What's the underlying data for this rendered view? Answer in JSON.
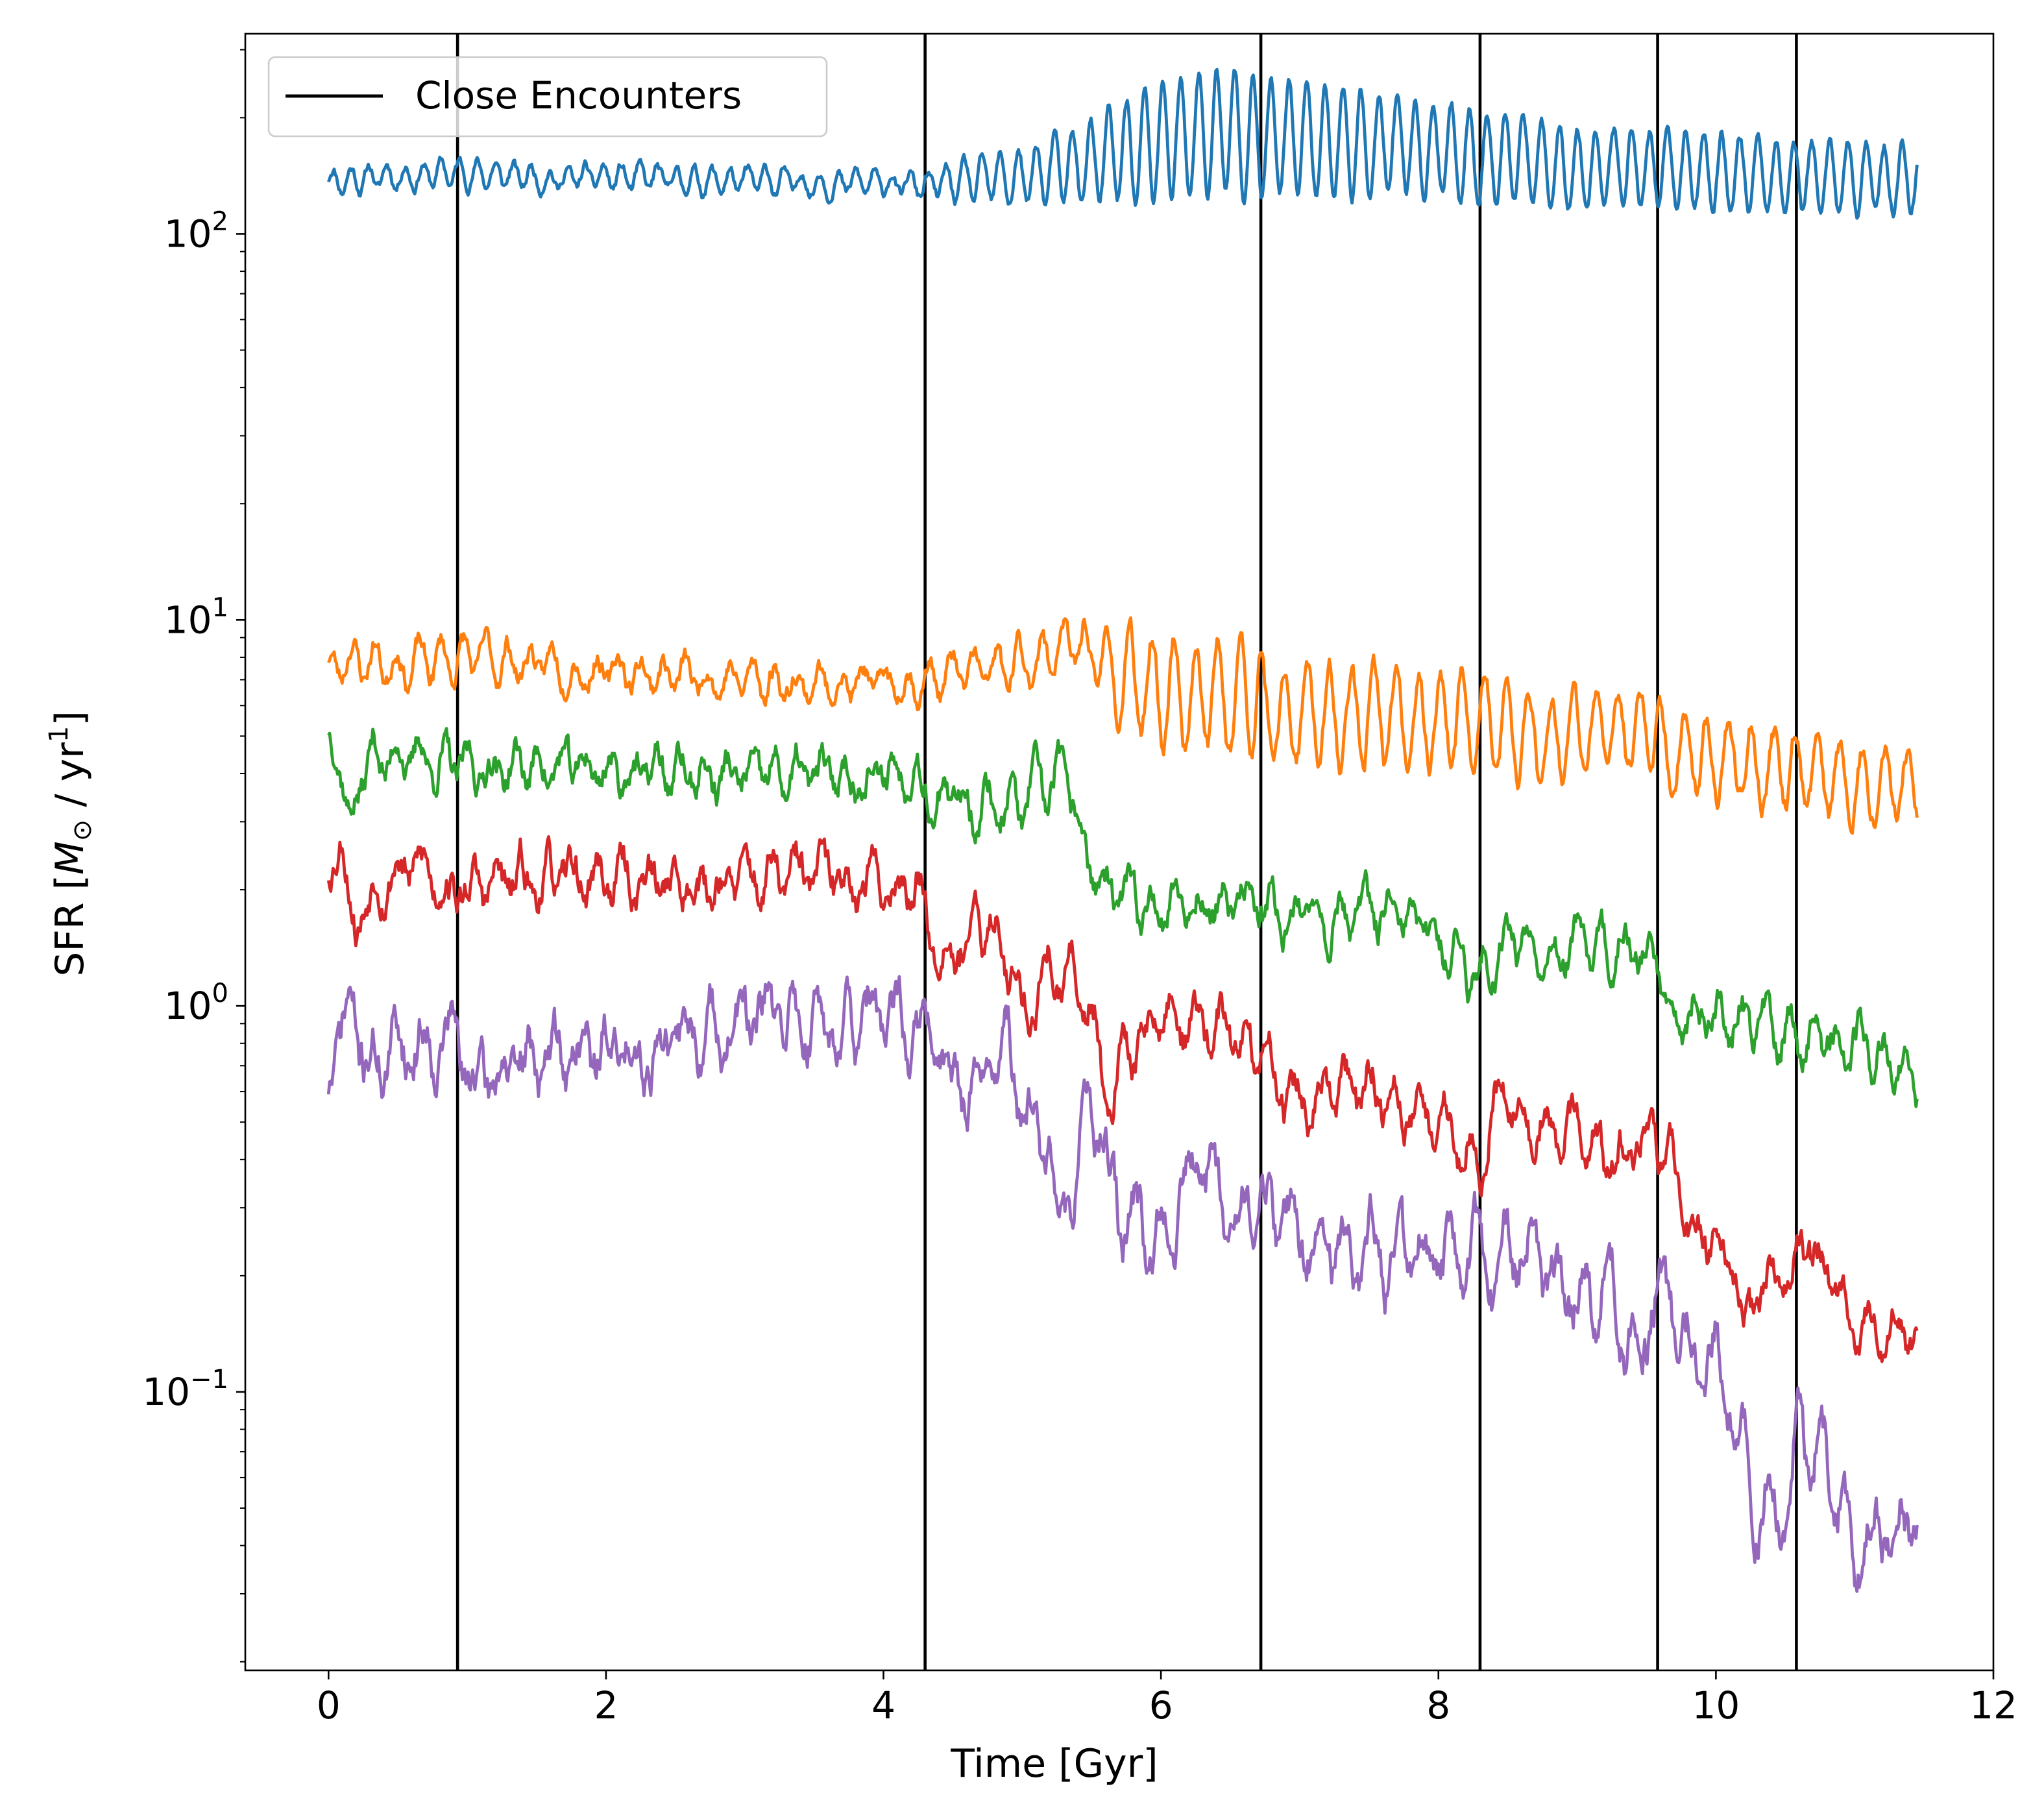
{
  "chart_data": {
    "type": "line",
    "xlabel": "Time [Gyr]",
    "ylabel": "SFR [M⊙ / yr¹]",
    "ylabel_parts": {
      "pre": "SFR [",
      "sym": "M",
      "sub": "⊙",
      "mid": " / yr",
      "sup": "1",
      "post": "]"
    },
    "xlim": [
      -0.6,
      12
    ],
    "ylim": [
      0.019,
      330
    ],
    "yscale": "log",
    "x_ticks": [
      0,
      2,
      4,
      6,
      8,
      10,
      12
    ],
    "x_tick_labels": [
      "0",
      "2",
      "4",
      "6",
      "8",
      "10",
      "12"
    ],
    "y_major_ticks": [
      {
        "value": 0.1,
        "base": "10",
        "exp": "−1"
      },
      {
        "value": 1,
        "base": "10",
        "exp": "0"
      },
      {
        "value": 10,
        "base": "10",
        "exp": "1"
      },
      {
        "value": 100,
        "base": "10",
        "exp": "2"
      }
    ],
    "grid": false,
    "legend": {
      "placement": "top-left",
      "entries": [
        {
          "label": "Close Encounters",
          "color": "#000000"
        }
      ]
    },
    "close_encounters": [
      0.93,
      4.3,
      6.72,
      8.3,
      9.58,
      10.58
    ],
    "series": [
      {
        "color": "#1f77b4",
        "x": [
          0,
          0.5,
          1.0,
          1.5,
          2.0,
          2.5,
          3.0,
          3.5,
          4.0,
          4.3,
          4.6,
          5.0,
          5.4,
          5.8,
          6.2,
          6.5,
          6.8,
          7.0,
          7.5,
          8.0,
          8.3,
          8.6,
          9.0,
          9.5,
          10.0,
          10.5,
          11.0,
          11.45
        ],
        "y": [
          138,
          142,
          144,
          140,
          140,
          138,
          137,
          136,
          135,
          133,
          136,
          140,
          150,
          165,
          180,
          185,
          175,
          180,
          170,
          165,
          160,
          155,
          150,
          148,
          145,
          142,
          138,
          140
        ],
        "amp": [
          0.03,
          0.03,
          0.03,
          0.03,
          0.03,
          0.03,
          0.03,
          0.03,
          0.03,
          0.03,
          0.05,
          0.07,
          0.1,
          0.14,
          0.16,
          0.16,
          0.15,
          0.15,
          0.13,
          0.12,
          0.12,
          0.11,
          0.1,
          0.1,
          0.1,
          0.09,
          0.09,
          0.09
        ],
        "period": 0.13,
        "noise": 0.02,
        "seed": 11
      },
      {
        "color": "#ff7f0e",
        "x": [
          0,
          0.1,
          0.5,
          1.0,
          1.5,
          2.0,
          2.5,
          3.0,
          3.5,
          4.0,
          4.3,
          4.6,
          5.0,
          5.3,
          5.5,
          5.7,
          6.0,
          6.5,
          6.72,
          6.75,
          7.0,
          7.5,
          8.0,
          8.3,
          8.5,
          9.0,
          9.58,
          9.62,
          10.0,
          10.58,
          11.0,
          11.45
        ],
        "y": [
          7.2,
          8.0,
          7.7,
          8.0,
          7.7,
          7.4,
          7.2,
          7.0,
          6.9,
          6.8,
          7.0,
          7.3,
          7.5,
          8.8,
          8.2,
          7.0,
          6.6,
          6.3,
          6.3,
          5.3,
          5.6,
          5.5,
          5.6,
          5.5,
          5.0,
          5.0,
          5.4,
          4.4,
          4.4,
          4.0,
          3.8,
          3.9
        ],
        "amp": [
          0.05,
          0.05,
          0.05,
          0.05,
          0.04,
          0.04,
          0.04,
          0.04,
          0.04,
          0.04,
          0.04,
          0.05,
          0.06,
          0.06,
          0.08,
          0.12,
          0.14,
          0.14,
          0.14,
          0.12,
          0.12,
          0.12,
          0.12,
          0.12,
          0.12,
          0.11,
          0.11,
          0.11,
          0.1,
          0.1,
          0.09,
          0.09
        ],
        "period": 0.16,
        "noise": 0.04,
        "seed": 23
      },
      {
        "color": "#2ca02c",
        "x": [
          0,
          0.05,
          0.15,
          0.3,
          0.6,
          0.93,
          1.5,
          2.0,
          2.5,
          3.0,
          3.5,
          4.0,
          4.3,
          4.35,
          4.8,
          5.0,
          5.3,
          5.4,
          5.6,
          5.8,
          6.0,
          6.5,
          6.72,
          6.75,
          7.0,
          7.5,
          8.0,
          8.3,
          8.5,
          9.0,
          9.58,
          9.65,
          10.0,
          10.58,
          11.0,
          11.45
        ],
        "y": [
          5.2,
          4.8,
          3.2,
          4.4,
          4.5,
          4.1,
          4.2,
          4.1,
          4.0,
          3.9,
          3.9,
          4.0,
          4.2,
          3.4,
          3.4,
          3.3,
          3.9,
          2.9,
          1.9,
          1.8,
          1.9,
          1.8,
          1.85,
          1.65,
          1.75,
          1.7,
          1.5,
          1.2,
          1.55,
          1.4,
          1.35,
          1.0,
          0.95,
          0.85,
          0.8,
          0.68
        ],
        "amp": [
          0,
          0,
          0,
          0.05,
          0.05,
          0.04,
          0.04,
          0.04,
          0.04,
          0.04,
          0.04,
          0.04,
          0.04,
          0.04,
          0.05,
          0.06,
          0.06,
          0.05,
          0.05,
          0.05,
          0.05,
          0.05,
          0.05,
          0.05,
          0.05,
          0.05,
          0.05,
          0.05,
          0.05,
          0.05,
          0.05,
          0.05,
          0.05,
          0.05,
          0.05,
          0.05
        ],
        "period": 0.17,
        "noise": 0.06,
        "seed": 37
      },
      {
        "color": "#d62728",
        "x": [
          0,
          0.1,
          0.2,
          0.35,
          0.6,
          0.93,
          1.5,
          2.0,
          2.5,
          3.0,
          3.5,
          4.0,
          4.3,
          4.35,
          4.8,
          4.95,
          5.0,
          5.2,
          5.5,
          5.6,
          5.8,
          6.0,
          6.5,
          6.72,
          7.0,
          7.5,
          8.0,
          8.3,
          8.35,
          8.5,
          8.7,
          9.0,
          9.3,
          9.58,
          9.8,
          10.0,
          10.2,
          10.58,
          10.8,
          11.0,
          11.2,
          11.45
        ],
        "y": [
          2.2,
          2.8,
          1.6,
          2.2,
          2.3,
          2.0,
          2.1,
          2.15,
          2.1,
          2.1,
          2.15,
          2.1,
          2.0,
          1.5,
          1.55,
          1.3,
          0.95,
          1.25,
          1.05,
          0.6,
          0.78,
          0.95,
          0.85,
          0.72,
          0.55,
          0.6,
          0.5,
          0.42,
          0.5,
          0.65,
          0.45,
          0.5,
          0.38,
          0.46,
          0.28,
          0.28,
          0.15,
          0.23,
          0.22,
          0.12,
          0.16,
          0.13
        ],
        "amp": [
          0,
          0,
          0,
          0.04,
          0.04,
          0.04,
          0.04,
          0.04,
          0.04,
          0.04,
          0.04,
          0.04,
          0.04,
          0.04,
          0.05,
          0.05,
          0.05,
          0.05,
          0.05,
          0.05,
          0.05,
          0.05,
          0.05,
          0.05,
          0.05,
          0.05,
          0.05,
          0.05,
          0.05,
          0.05,
          0.05,
          0.05,
          0.05,
          0.05,
          0.05,
          0.05,
          0.05,
          0.05,
          0.05,
          0.05,
          0.05,
          0.05
        ],
        "period": 0.18,
        "noise": 0.07,
        "seed": 53
      },
      {
        "color": "#9467bd",
        "x": [
          0,
          0.05,
          0.15,
          0.25,
          0.5,
          0.93,
          1.0,
          1.5,
          2.0,
          2.5,
          3.0,
          3.5,
          4.0,
          4.3,
          4.4,
          4.6,
          4.9,
          5.0,
          5.2,
          5.25,
          5.35,
          5.5,
          5.7,
          6.0,
          6.2,
          6.5,
          6.72,
          7.0,
          7.5,
          7.8,
          8.0,
          8.3,
          8.35,
          8.6,
          8.9,
          9.2,
          9.4,
          9.6,
          9.8,
          10.0,
          10.3,
          10.5,
          10.6,
          10.8,
          11.0,
          11.2,
          11.45
        ],
        "y": [
          0.62,
          0.7,
          1.1,
          0.7,
          0.8,
          0.85,
          0.62,
          0.72,
          0.78,
          0.8,
          0.9,
          0.92,
          0.88,
          0.85,
          0.72,
          0.62,
          0.8,
          0.55,
          0.45,
          0.22,
          0.32,
          0.55,
          0.28,
          0.26,
          0.4,
          0.3,
          0.3,
          0.25,
          0.23,
          0.2,
          0.22,
          0.22,
          0.18,
          0.25,
          0.16,
          0.2,
          0.13,
          0.19,
          0.14,
          0.12,
          0.055,
          0.05,
          0.085,
          0.07,
          0.04,
          0.045,
          0.05
        ],
        "amp": [
          0,
          0,
          0,
          0.05,
          0.05,
          0.05,
          0.05,
          0.05,
          0.05,
          0.05,
          0.05,
          0.05,
          0.05,
          0.05,
          0.06,
          0.06,
          0.06,
          0.07,
          0.07,
          0.07,
          0.07,
          0.07,
          0.07,
          0.07,
          0.07,
          0.07,
          0.07,
          0.07,
          0.07,
          0.07,
          0.07,
          0.07,
          0.07,
          0.07,
          0.07,
          0.07,
          0.07,
          0.07,
          0.07,
          0.07,
          0.07,
          0.07,
          0.07,
          0.07,
          0.07,
          0.07,
          0.07
        ],
        "period": 0.19,
        "noise": 0.09,
        "seed": 71
      }
    ]
  }
}
